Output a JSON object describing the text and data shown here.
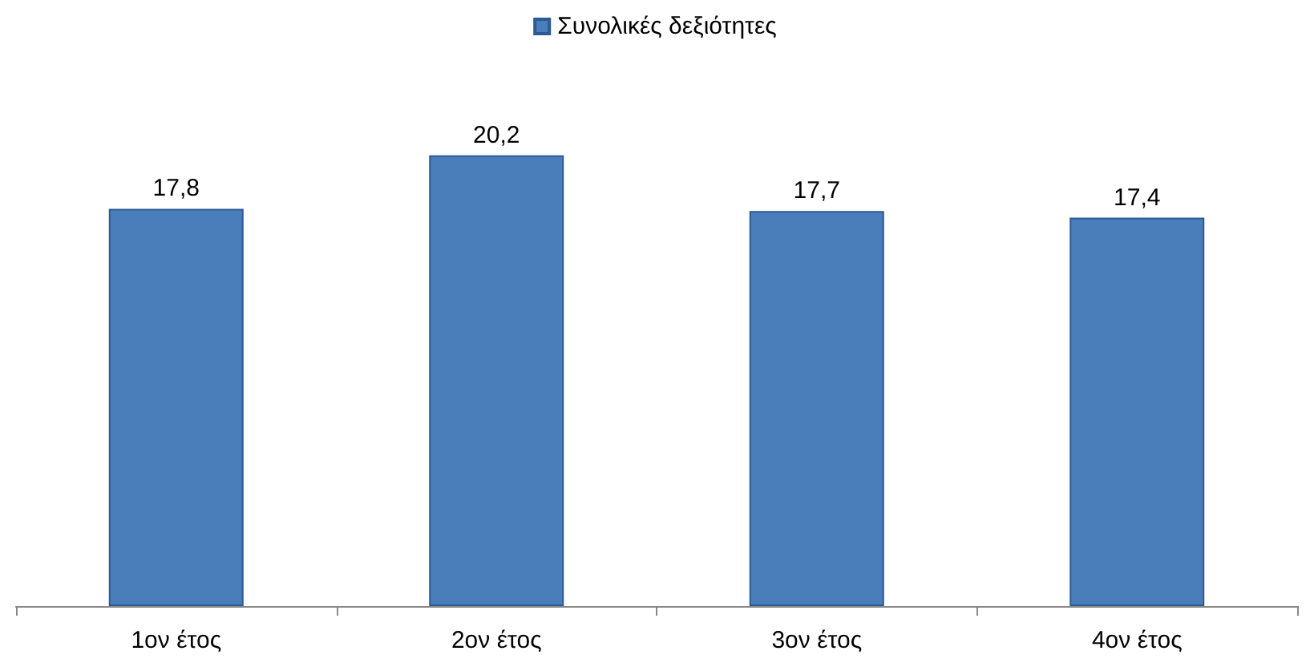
{
  "chart_data": {
    "type": "bar",
    "categories": [
      "1ον έτος",
      "2ον έτος",
      "3ον έτος",
      "4ον έτος"
    ],
    "series": [
      {
        "name": "Συνολικές δεξιότητες",
        "color": "#4a7ebb",
        "values": [
          17.8,
          20.2,
          17.7,
          17.4
        ],
        "value_labels": [
          "17,8",
          "20,2",
          "17,7",
          "17,4"
        ]
      }
    ],
    "tick_labels": "x",
    "legend": "top",
    "grid": false
  }
}
